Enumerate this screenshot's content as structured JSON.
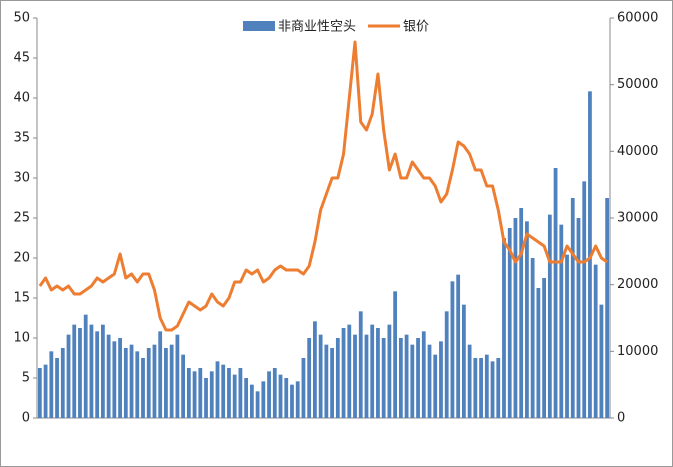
{
  "chart_data": {
    "type": "bar+line",
    "categories": [
      null,
      null,
      null,
      null,
      null,
      null,
      null,
      null,
      null,
      null,
      null,
      null,
      null,
      null,
      null,
      null,
      null,
      null,
      null,
      null,
      null,
      null,
      null,
      null,
      null,
      null,
      null,
      null,
      null,
      null,
      null,
      null,
      null,
      null,
      null,
      null,
      null,
      null,
      null,
      null,
      null,
      null,
      null,
      null,
      null,
      null,
      null,
      null,
      null,
      null,
      null,
      null,
      null,
      null,
      null,
      null,
      null,
      null,
      null,
      null,
      null,
      null,
      null,
      null,
      null,
      null,
      null,
      null,
      null,
      null,
      null,
      null,
      null,
      null,
      null,
      null,
      null,
      null,
      null,
      null,
      null,
      null,
      null,
      null,
      null,
      null,
      null,
      null,
      null,
      null,
      null,
      null,
      null,
      null,
      null,
      null,
      null,
      null,
      null,
      null
    ],
    "series": [
      {
        "name": "非商业性空头",
        "type": "bar",
        "axis": "y2",
        "color": "#4f81bd",
        "values": [
          7500,
          8000,
          10000,
          9000,
          10500,
          12500,
          14000,
          13500,
          15500,
          14000,
          13000,
          14000,
          12500,
          11500,
          12000,
          10500,
          11000,
          10000,
          9000,
          10500,
          11000,
          13000,
          10500,
          11000,
          12500,
          9500,
          7500,
          7000,
          7500,
          6000,
          7000,
          8500,
          8000,
          7500,
          6500,
          7500,
          6000,
          5000,
          4000,
          5500,
          7000,
          7500,
          6500,
          6000,
          5000,
          5500,
          9000,
          12000,
          14500,
          12500,
          11000,
          10500,
          12000,
          13500,
          14000,
          12500,
          16000,
          12500,
          14000,
          13500,
          12000,
          14000,
          19000,
          12000,
          12500,
          11000,
          12000,
          13000,
          11000,
          9500,
          11500,
          16000,
          20500,
          21500,
          17000,
          11000,
          9000,
          9000,
          9500,
          8500,
          9000,
          27000,
          28500,
          30000,
          31500,
          29500,
          24000,
          19500,
          21000,
          30500,
          37500,
          29000,
          24500,
          33000,
          30000,
          35500,
          49000,
          23000,
          17000,
          33000
        ]
      },
      {
        "name": "银价",
        "type": "line",
        "axis": "y",
        "color": "#ed7d31",
        "values": [
          16.5,
          17.5,
          16,
          16.5,
          16,
          16.5,
          15.5,
          15.5,
          16,
          16.5,
          17.5,
          17,
          17.5,
          18,
          20.5,
          17.5,
          18,
          17,
          18,
          18,
          16,
          12.5,
          11,
          11,
          11.5,
          13,
          14.5,
          14,
          13.5,
          14,
          15.5,
          14.5,
          14,
          15,
          17,
          17,
          18.5,
          18,
          18.5,
          17,
          17.5,
          18.5,
          19,
          18.5,
          18.5,
          18.5,
          18,
          19,
          22,
          26,
          28,
          30,
          30,
          33,
          40,
          47,
          37,
          36,
          38,
          43,
          36,
          31,
          33,
          30,
          30,
          32,
          31,
          30,
          30,
          29,
          27,
          28,
          31,
          34.5,
          34,
          33,
          31,
          31,
          29,
          29,
          26,
          22,
          21,
          19.5,
          20.5,
          23,
          22.5,
          22,
          21.5,
          19.5,
          19.5,
          19.5,
          21.5,
          20.5,
          19.5,
          19.5,
          20,
          21.5,
          20,
          19.5
        ]
      }
    ],
    "ylim": [
      0,
      50
    ],
    "yticks": [
      0,
      5,
      10,
      15,
      20,
      25,
      30,
      35,
      40,
      45,
      50
    ],
    "y2lim": [
      0,
      60000
    ],
    "y2ticks": [
      0,
      10000,
      20000,
      30000,
      40000,
      50000,
      60000
    ],
    "grid": false,
    "legend": "top"
  }
}
